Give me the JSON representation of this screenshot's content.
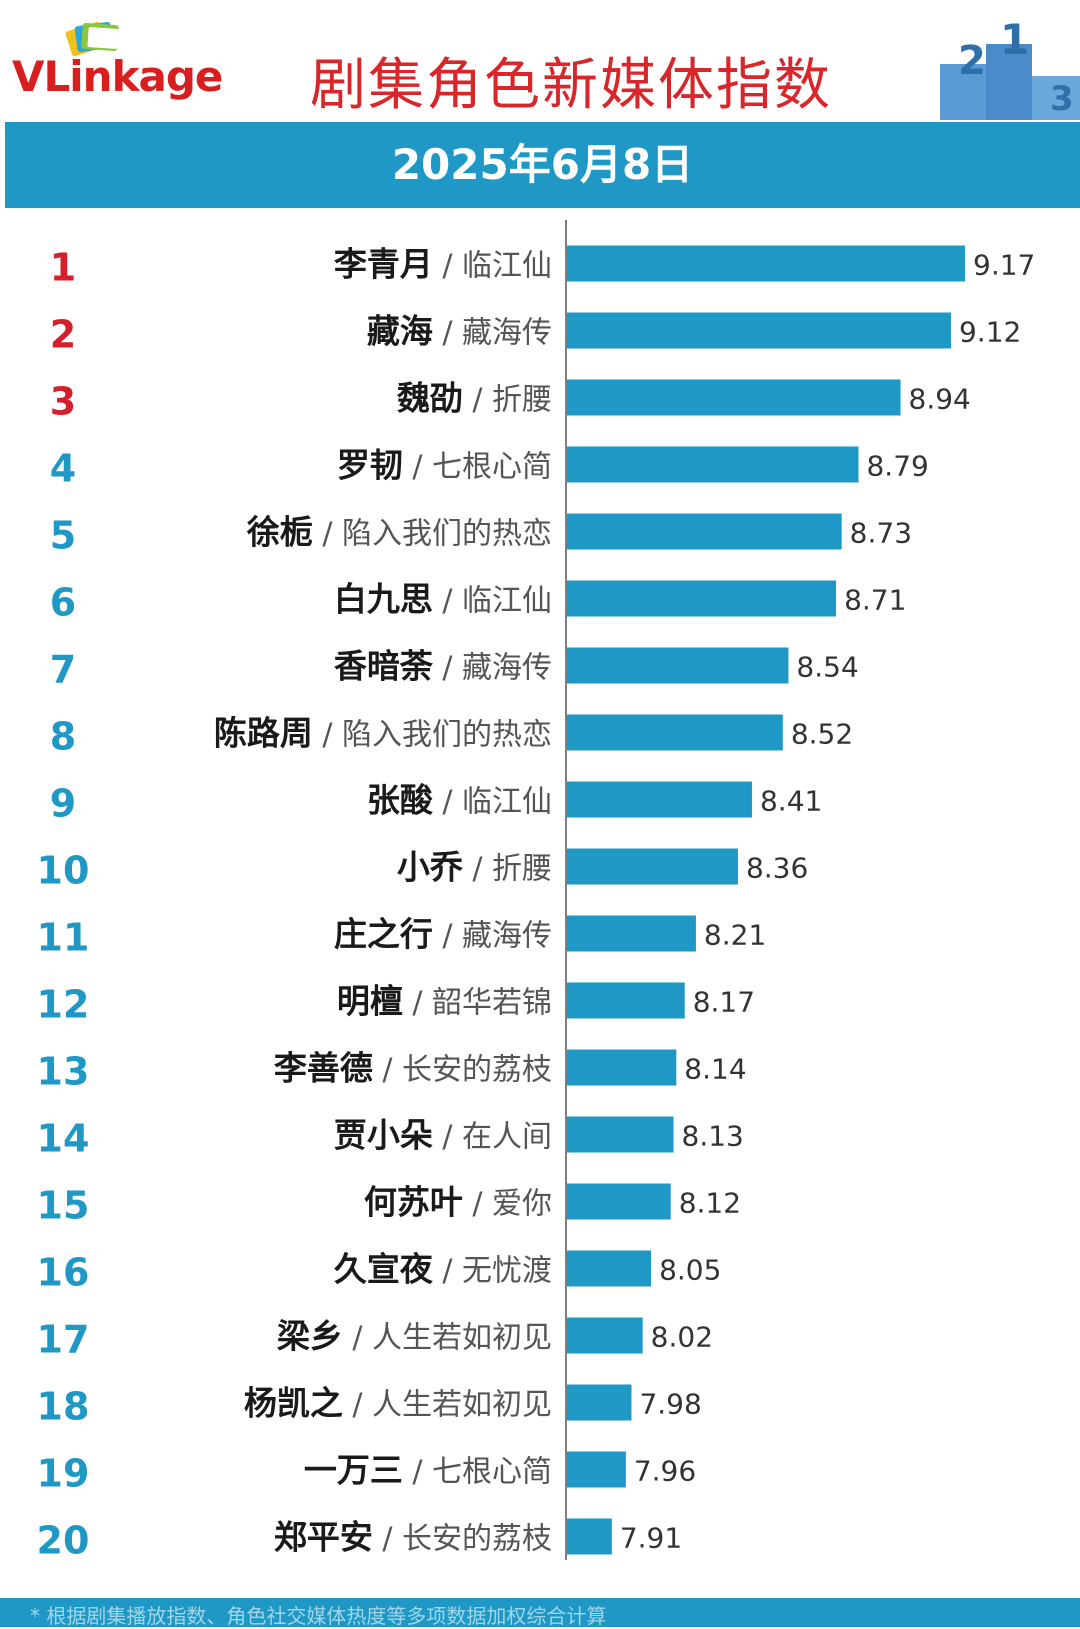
{
  "header": {
    "logo_text": "VLinkage",
    "title": "剧集角色新媒体指数",
    "podium_numbers": [
      "2",
      "1",
      "3"
    ]
  },
  "date": "2025年6月8日",
  "colors": {
    "bar": "#1f98c5",
    "rank_top3": "#d51f2b",
    "rank_other": "#1f98c5",
    "title": "#d8262a"
  },
  "chart_data": {
    "type": "bar",
    "orientation": "horizontal",
    "title": "剧集角色新媒体指数",
    "subtitle": "2025年6月8日",
    "xlim": [
      7.75,
      9.25
    ],
    "grid": false,
    "rows": [
      {
        "rank": "1",
        "character": "李青月",
        "drama": "临江仙",
        "value": 9.17
      },
      {
        "rank": "2",
        "character": "藏海",
        "drama": "藏海传",
        "value": 9.12
      },
      {
        "rank": "3",
        "character": "魏劭",
        "drama": "折腰",
        "value": 8.94
      },
      {
        "rank": "4",
        "character": "罗韧",
        "drama": "七根心简",
        "value": 8.79
      },
      {
        "rank": "5",
        "character": "徐栀",
        "drama": "陷入我们的热恋",
        "value": 8.73
      },
      {
        "rank": "6",
        "character": "白九思",
        "drama": "临江仙",
        "value": 8.71
      },
      {
        "rank": "7",
        "character": "香暗荼",
        "drama": "藏海传",
        "value": 8.54
      },
      {
        "rank": "8",
        "character": "陈路周",
        "drama": "陷入我们的热恋",
        "value": 8.52
      },
      {
        "rank": "9",
        "character": "张酸",
        "drama": "临江仙",
        "value": 8.41
      },
      {
        "rank": "10",
        "character": "小乔",
        "drama": "折腰",
        "value": 8.36
      },
      {
        "rank": "11",
        "character": "庄之行",
        "drama": "藏海传",
        "value": 8.21
      },
      {
        "rank": "12",
        "character": "明檀",
        "drama": "韶华若锦",
        "value": 8.17
      },
      {
        "rank": "13",
        "character": "李善德",
        "drama": "长安的荔枝",
        "value": 8.14
      },
      {
        "rank": "14",
        "character": "贾小朵",
        "drama": "在人间",
        "value": 8.13
      },
      {
        "rank": "15",
        "character": "何苏叶",
        "drama": "爱你",
        "value": 8.12
      },
      {
        "rank": "16",
        "character": "久宣夜",
        "drama": "无忧渡",
        "value": 8.05
      },
      {
        "rank": "17",
        "character": "梁乡",
        "drama": "人生若如初见",
        "value": 8.02
      },
      {
        "rank": "18",
        "character": "杨凯之",
        "drama": "人生若如初见",
        "value": 7.98
      },
      {
        "rank": "19",
        "character": "一万三",
        "drama": "七根心简",
        "value": 7.96
      },
      {
        "rank": "20",
        "character": "郑平安",
        "drama": "长安的荔枝",
        "value": 7.91
      }
    ]
  },
  "footer": {
    "text": "* 根据剧集播放指数、角色社交媒体热度等多项数据加权综合计算"
  }
}
